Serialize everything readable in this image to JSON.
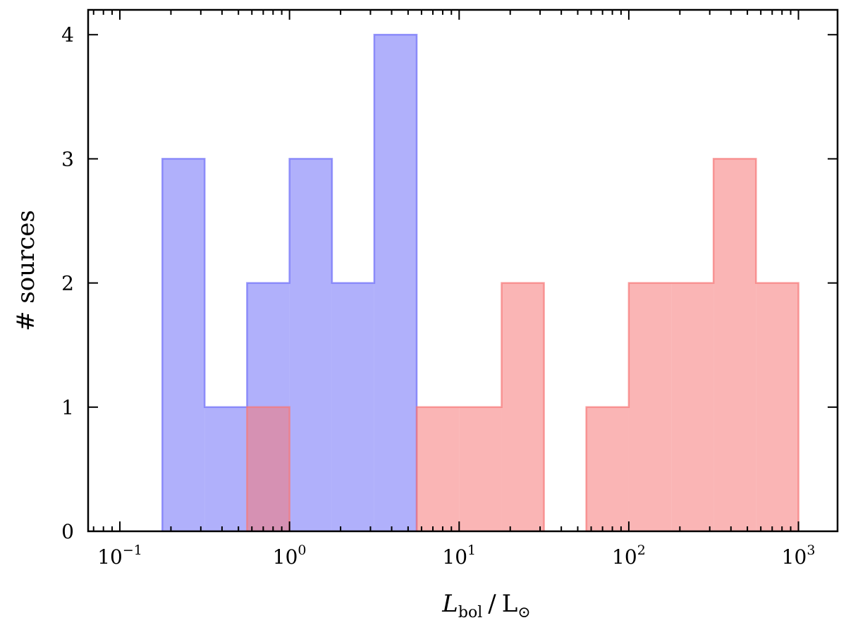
{
  "chart_data": {
    "type": "bar",
    "title": "",
    "xscale": "log",
    "xlim": [
      0.065,
      1700
    ],
    "ylim": [
      0,
      4.2
    ],
    "grid": false,
    "xlabel": {
      "main": "L",
      "sub": "bol",
      "sep": "/",
      "unit": "L",
      "unit_sub": "⊙"
    },
    "ylabel": "# sources",
    "x_ticks": [
      {
        "value": 0.1,
        "base": "10",
        "exp": "−1"
      },
      {
        "value": 1,
        "base": "10",
        "exp": "0"
      },
      {
        "value": 10,
        "base": "10",
        "exp": "1"
      },
      {
        "value": 100,
        "base": "10",
        "exp": "2"
      },
      {
        "value": 1000,
        "base": "10",
        "exp": "3"
      }
    ],
    "y_ticks": [
      0,
      1,
      2,
      3,
      4
    ],
    "y_tick_labels": [
      "0",
      "1",
      "2",
      "3",
      "4"
    ],
    "series": [
      {
        "color": "#6f6ff8",
        "bins": [
          {
            "x0": 0.178,
            "x1": 0.316,
            "count": 3
          },
          {
            "x0": 0.316,
            "x1": 0.562,
            "count": 1
          },
          {
            "x0": 0.562,
            "x1": 1.0,
            "count": 2
          },
          {
            "x0": 1.0,
            "x1": 1.78,
            "count": 3
          },
          {
            "x0": 1.78,
            "x1": 3.16,
            "count": 2
          },
          {
            "x0": 3.16,
            "x1": 5.62,
            "count": 4
          }
        ]
      },
      {
        "color": "#f67878",
        "bins": [
          {
            "x0": 0.562,
            "x1": 1.0,
            "count": 1
          },
          {
            "x0": 5.62,
            "x1": 10.0,
            "count": 1
          },
          {
            "x0": 10.0,
            "x1": 17.8,
            "count": 1
          },
          {
            "x0": 17.8,
            "x1": 31.6,
            "count": 2
          },
          {
            "x0": 56.2,
            "x1": 100,
            "count": 1
          },
          {
            "x0": 100,
            "x1": 178,
            "count": 2
          },
          {
            "x0": 178,
            "x1": 316,
            "count": 2
          },
          {
            "x0": 316,
            "x1": 562,
            "count": 3
          },
          {
            "x0": 562,
            "x1": 1000,
            "count": 2
          }
        ]
      }
    ]
  }
}
